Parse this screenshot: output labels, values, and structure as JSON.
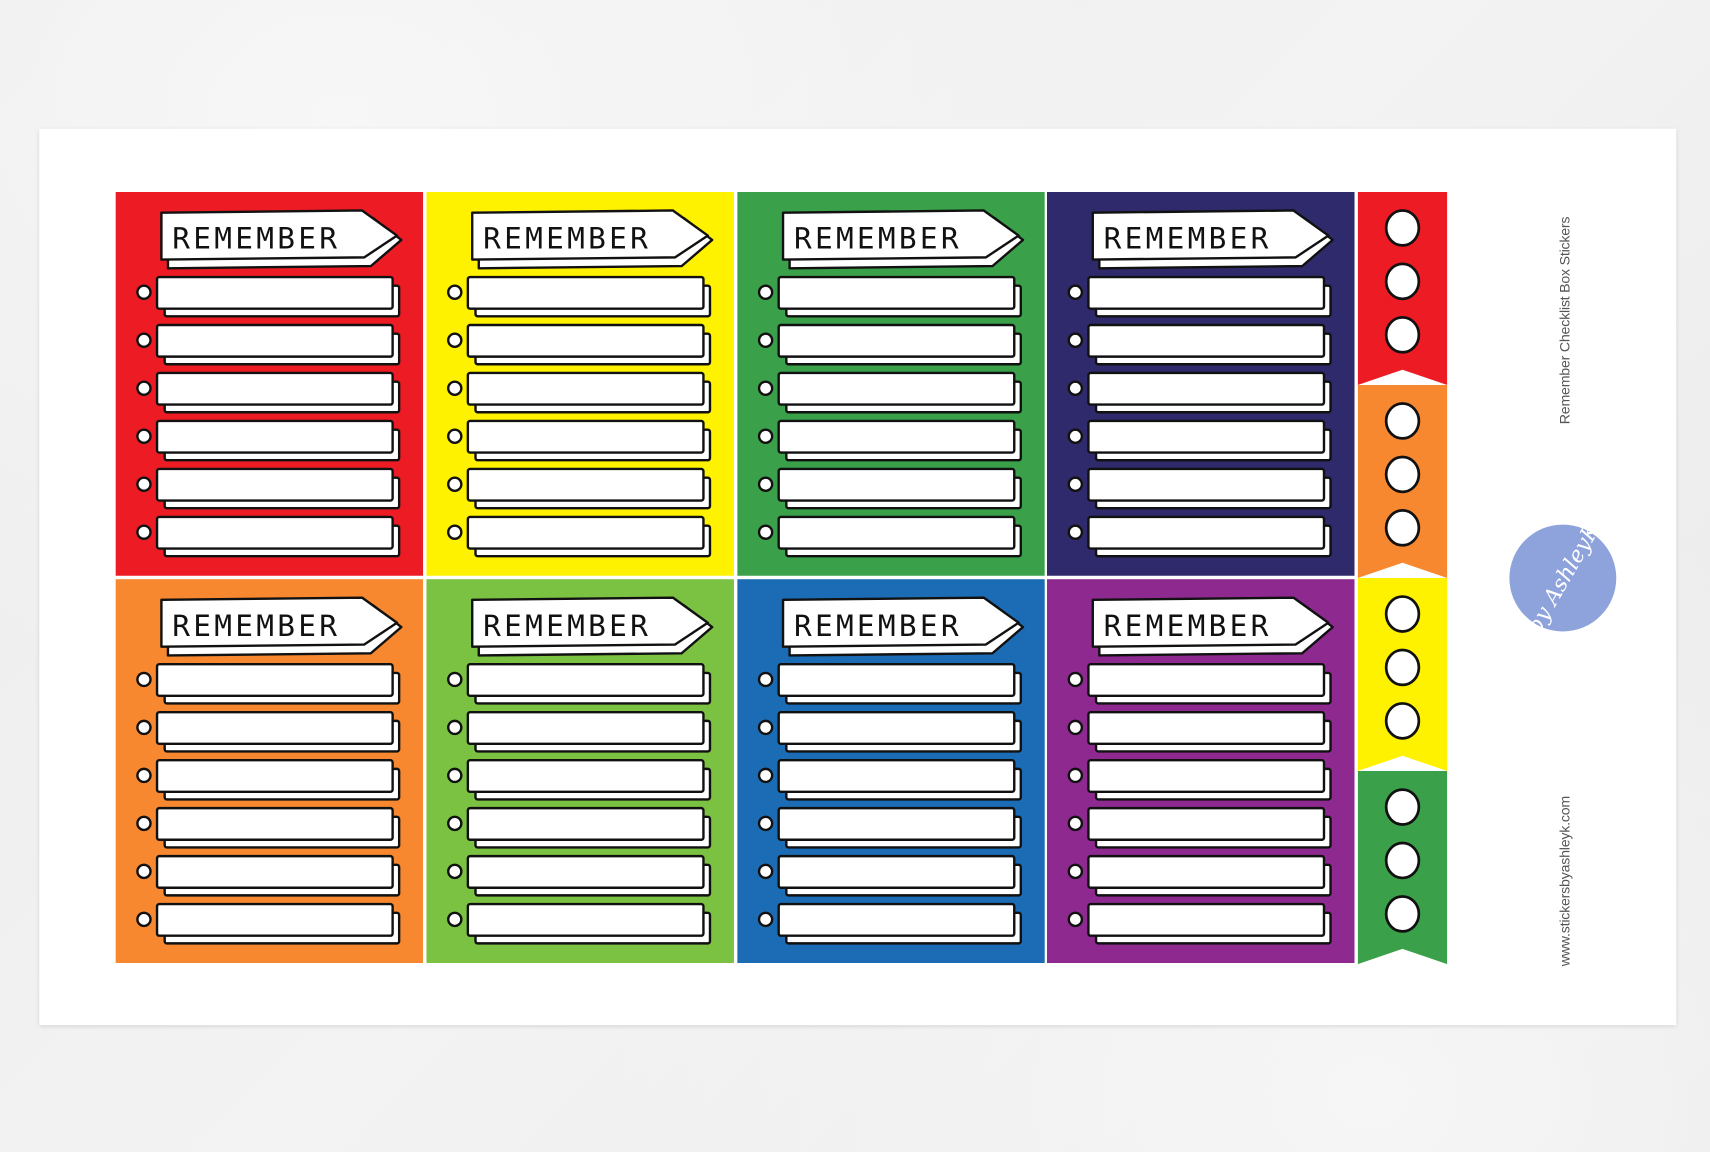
{
  "sheet": {
    "title": "Remember Checklist Box Stickers",
    "website": "www.stickersbyashleyk.com",
    "logo_text": "by AshleyK"
  },
  "sticker": {
    "heading": "REMEMBER",
    "lines_per_box": 6
  },
  "boxes": [
    {
      "color": "#ed1c24"
    },
    {
      "color": "#fff200"
    },
    {
      "color": "#3aa049"
    },
    {
      "color": "#2e2a6b"
    },
    {
      "color": "#f7882f"
    },
    {
      "color": "#7cc242"
    },
    {
      "color": "#1b6bb5"
    },
    {
      "color": "#8e2990"
    }
  ],
  "flags": [
    {
      "color": "#ed1c24",
      "circles": 3
    },
    {
      "color": "#f7882f",
      "circles": 3
    },
    {
      "color": "#fff200",
      "circles": 3
    },
    {
      "color": "#3aa049",
      "circles": 3
    }
  ]
}
